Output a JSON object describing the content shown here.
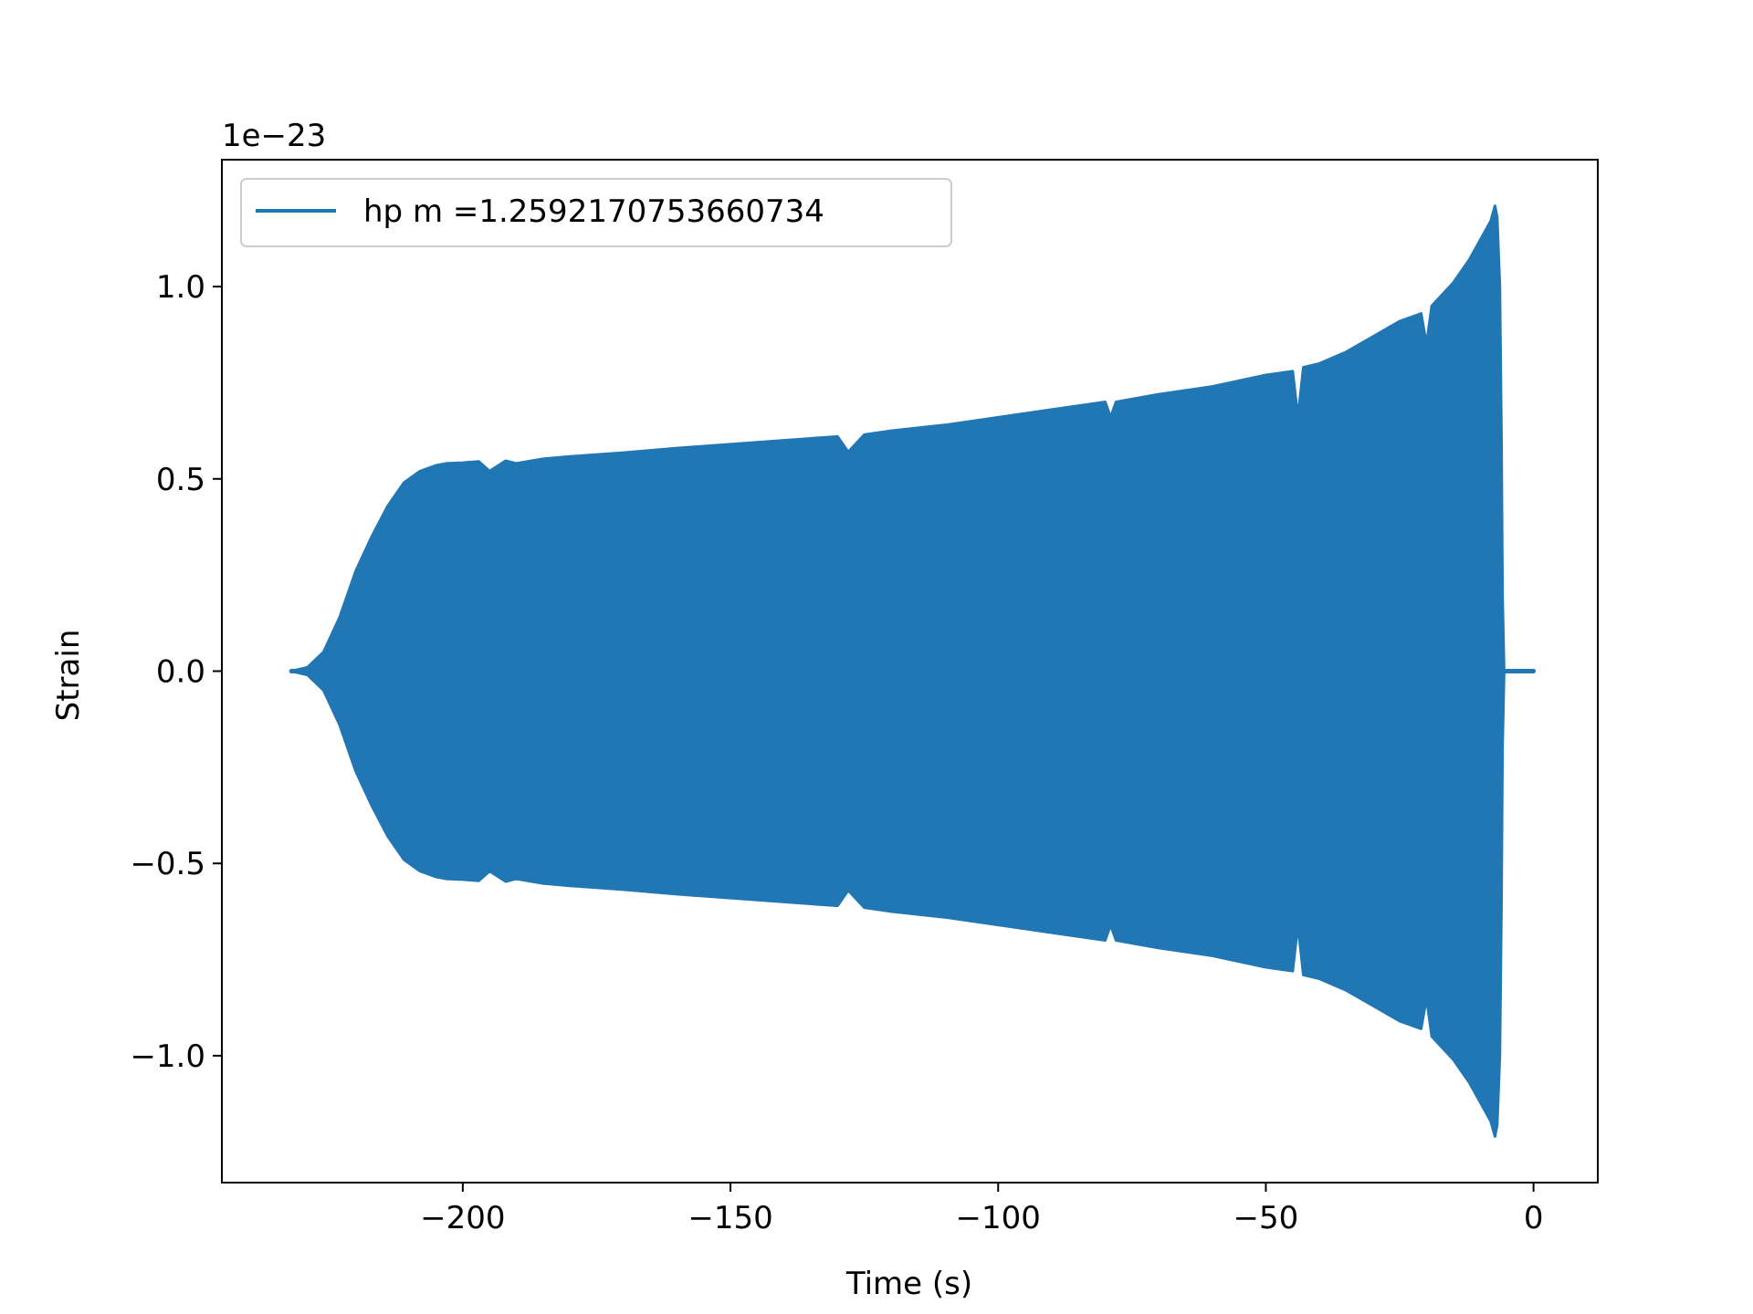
{
  "chart_data": {
    "type": "line",
    "title": "",
    "xlabel": "Time (s)",
    "ylabel": "Strain",
    "offset_label": "1e−23",
    "xlim": [
      -245,
      12
    ],
    "ylim": [
      -1.33,
      1.33
    ],
    "x_ticks": [
      -200,
      -150,
      -100,
      -50,
      0
    ],
    "x_tick_labels": [
      "−200",
      "−150",
      "−100",
      "−50",
      "0"
    ],
    "y_ticks": [
      -1.0,
      -0.5,
      0.0,
      0.5,
      1.0
    ],
    "y_tick_labels": [
      "−1.0",
      "−0.5",
      "0.0",
      "0.5",
      "1.0"
    ],
    "grid": false,
    "legend_position": "top-left",
    "series": [
      {
        "name": "hp m =1.2592170753660734",
        "color": "#2077b4",
        "envelope_x": [
          -232,
          -229,
          -226,
          -223,
          -220,
          -217,
          -214,
          -211,
          -208,
          -205,
          -203,
          -200,
          -197,
          -195,
          -192,
          -190,
          -185,
          -180,
          -170,
          -160,
          -150,
          -140,
          -130,
          -128,
          -125,
          -120,
          -110,
          -100,
          -90,
          -80,
          -79,
          -78,
          -70,
          -60,
          -50,
          -45,
          -44,
          -43,
          -40,
          -35,
          -30,
          -25,
          -21,
          -20,
          -19,
          -15,
          -12,
          -10,
          -8,
          -7.2,
          -6.8,
          -6.3,
          -6,
          -5.8,
          -5.5,
          0
        ],
        "envelope_y": [
          0.0,
          0.01,
          0.05,
          0.14,
          0.26,
          0.35,
          0.43,
          0.49,
          0.52,
          0.535,
          0.54,
          0.542,
          0.545,
          0.52,
          0.547,
          0.54,
          0.552,
          0.558,
          0.568,
          0.58,
          0.59,
          0.6,
          0.61,
          0.57,
          0.615,
          0.625,
          0.64,
          0.66,
          0.68,
          0.7,
          0.66,
          0.7,
          0.72,
          0.74,
          0.77,
          0.78,
          0.66,
          0.79,
          0.8,
          0.83,
          0.87,
          0.91,
          0.93,
          0.85,
          0.95,
          1.01,
          1.07,
          1.12,
          1.17,
          1.21,
          1.18,
          1.0,
          0.6,
          0.2,
          0.0,
          0.0
        ]
      }
    ]
  }
}
